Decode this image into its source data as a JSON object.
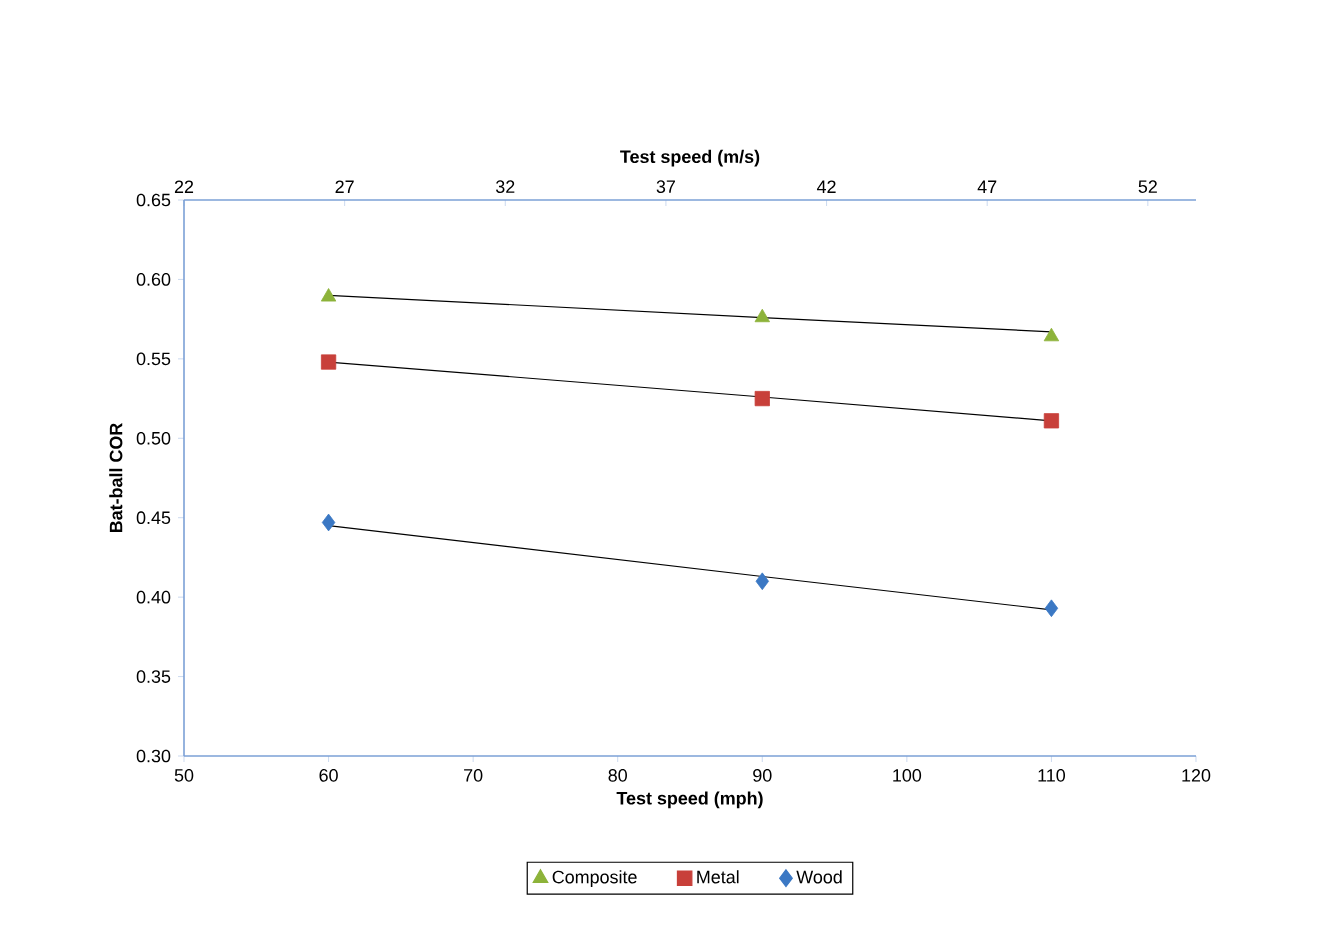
{
  "chart_data": {
    "type": "scatter",
    "xlabel": "Test speed (mph)",
    "x2label": "Test speed (m/s)",
    "ylabel": "Bat-ball COR",
    "x": [
      60,
      90,
      110
    ],
    "xlim": [
      50,
      120
    ],
    "xticks": [
      50,
      60,
      70,
      80,
      90,
      100,
      110,
      120
    ],
    "x2lim": [
      22,
      53.5
    ],
    "x2ticks": [
      22,
      27,
      32,
      37,
      42,
      47,
      52
    ],
    "ylim": [
      0.3,
      0.65
    ],
    "yticks": [
      {
        "value": 0.3,
        "label": "0.30"
      },
      {
        "value": 0.35,
        "label": "0.35"
      },
      {
        "value": 0.4,
        "label": "0.40"
      },
      {
        "value": 0.45,
        "label": "0.45"
      },
      {
        "value": 0.5,
        "label": "0.50"
      },
      {
        "value": 0.55,
        "label": "0.55"
      },
      {
        "value": 0.6,
        "label": "0.60"
      },
      {
        "value": 0.65,
        "label": "0.65"
      }
    ],
    "legend": "bottom",
    "grid": false,
    "series": [
      {
        "type": "line",
        "color": "#000000",
        "values": [
          0.59,
          0.576,
          0.567
        ],
        "line_style": "solid"
      },
      {
        "type": "line",
        "color": "#000000",
        "values": [
          0.548,
          0.526,
          0.511
        ],
        "line_style": "solid"
      },
      {
        "type": "line",
        "color": "#000000",
        "values": [
          0.445,
          0.413,
          0.392
        ],
        "line_style": "solid"
      },
      {
        "name": "Composite",
        "color": "#8db33a",
        "marker": "triangle",
        "values": [
          0.589,
          0.576,
          0.564
        ]
      },
      {
        "name": "Metal",
        "color": "#c8403a",
        "marker": "square",
        "values": [
          0.548,
          0.525,
          0.511
        ]
      },
      {
        "name": "Wood",
        "color": "#3b78c4",
        "marker": "diamond",
        "values": [
          0.447,
          0.41,
          0.393
        ]
      }
    ]
  }
}
